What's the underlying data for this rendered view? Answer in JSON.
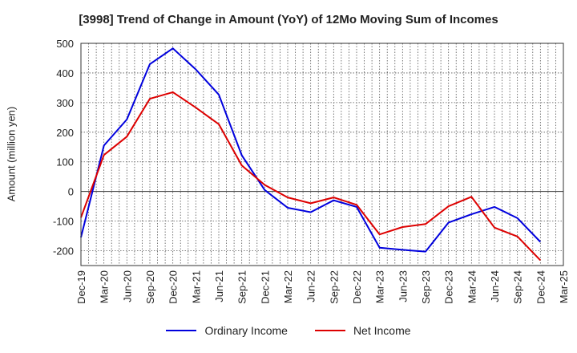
{
  "chart_data": {
    "type": "line",
    "title": "[3998]  Trend of Change in Amount (YoY) of 12Mo Moving Sum of Incomes",
    "xlabel": "",
    "ylabel": "Amount (million yen)",
    "ylim": [
      -250,
      500
    ],
    "yticks": [
      500,
      400,
      300,
      200,
      100,
      0,
      -100,
      -200
    ],
    "ytick_labels": [
      "500",
      "400",
      "300",
      "200",
      "100",
      "0",
      "-100",
      "-200"
    ],
    "grid": true,
    "legend_position": "bottom",
    "x": [
      "Dec-19",
      "Mar-20",
      "Jun-20",
      "Sep-20",
      "Dec-20",
      "Mar-21",
      "Jun-21",
      "Sep-21",
      "Dec-21",
      "Mar-22",
      "Jun-22",
      "Sep-22",
      "Dec-22",
      "Mar-23",
      "Jun-23",
      "Sep-23",
      "Dec-23",
      "Mar-24",
      "Jun-24",
      "Sep-24",
      "Dec-24",
      "Mar-25"
    ],
    "series": [
      {
        "name": "Ordinary Income",
        "color": "#0000dd",
        "values": [
          -155,
          155,
          243,
          430,
          483,
          412,
          327,
          122,
          5,
          -55,
          -70,
          -30,
          -52,
          -190,
          -197,
          -203,
          -105,
          -77,
          -52,
          -90,
          -170,
          null
        ]
      },
      {
        "name": "Net Income",
        "color": "#dd0000",
        "values": [
          -88,
          123,
          185,
          313,
          335,
          283,
          227,
          88,
          22,
          -20,
          -40,
          -20,
          -45,
          -145,
          -120,
          -110,
          -50,
          -18,
          -122,
          -152,
          -232,
          null
        ]
      }
    ]
  },
  "legend": {
    "ordinary_income": "Ordinary Income",
    "net_income": "Net Income"
  }
}
